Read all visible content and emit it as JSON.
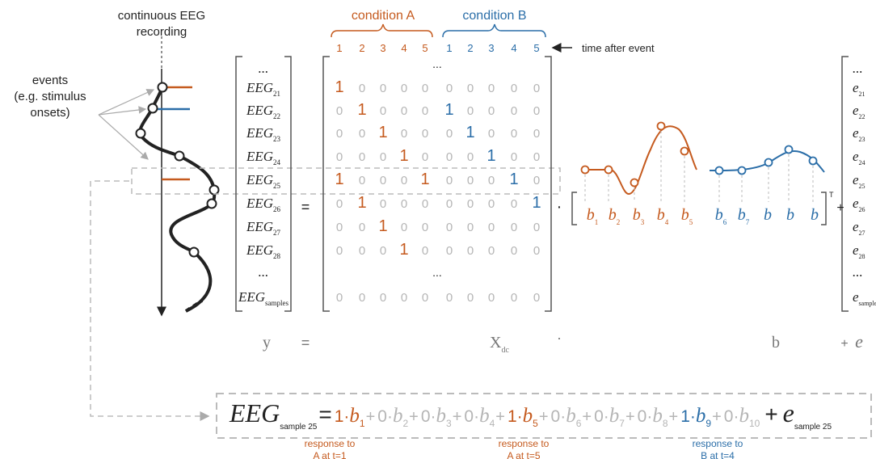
{
  "recording_title": [
    "continuous EEG",
    "recording"
  ],
  "events_label": [
    "events",
    "(e.g. stimulus",
    "onsets)"
  ],
  "conditions": [
    {
      "name": "condition A",
      "lags": [
        1,
        2,
        3,
        4,
        5
      ]
    },
    {
      "name": "condition B",
      "lags": [
        1,
        2,
        3,
        4,
        5
      ]
    }
  ],
  "time_label": "time after event",
  "y_vector": [
    {
      "main": "..."
    },
    {
      "main": "EEG",
      "sub": "21"
    },
    {
      "main": "EEG",
      "sub": "22"
    },
    {
      "main": "EEG",
      "sub": "23"
    },
    {
      "main": "EEG",
      "sub": "24"
    },
    {
      "main": "EEG",
      "sub": "25"
    },
    {
      "main": "EEG",
      "sub": "26"
    },
    {
      "main": "EEG",
      "sub": "27"
    },
    {
      "main": "EEG",
      "sub": "28"
    },
    {
      "main": "..."
    },
    {
      "main": "EEG",
      "sub": "samples"
    }
  ],
  "design_matrix": {
    "top": "...",
    "rows": [
      [
        1,
        0,
        0,
        0,
        0,
        0,
        0,
        0,
        0,
        0
      ],
      [
        0,
        1,
        0,
        0,
        0,
        1,
        0,
        0,
        0,
        0
      ],
      [
        0,
        0,
        1,
        0,
        0,
        0,
        1,
        0,
        0,
        0
      ],
      [
        0,
        0,
        0,
        1,
        0,
        0,
        0,
        1,
        0,
        0
      ],
      [
        1,
        0,
        0,
        0,
        1,
        0,
        0,
        0,
        1,
        0
      ],
      [
        0,
        1,
        0,
        0,
        0,
        0,
        0,
        0,
        0,
        1
      ],
      [
        0,
        0,
        1,
        0,
        0,
        0,
        0,
        0,
        0,
        0
      ],
      [
        0,
        0,
        0,
        1,
        0,
        0,
        0,
        0,
        0,
        0
      ]
    ],
    "gap": "...",
    "last_row": [
      0,
      0,
      0,
      0,
      0,
      0,
      0,
      0,
      0,
      0
    ]
  },
  "b_vector": [
    {
      "main": "b",
      "sub": "1"
    },
    {
      "main": "b",
      "sub": "2"
    },
    {
      "main": "b",
      "sub": "3"
    },
    {
      "main": "b",
      "sub": "4"
    },
    {
      "main": "b",
      "sub": "5"
    },
    {
      "main": "b",
      "sub": "6"
    },
    {
      "main": "b",
      "sub": "7"
    },
    {
      "main": "b"
    },
    {
      "main": "b"
    },
    {
      "main": "b"
    }
  ],
  "transpose": "T",
  "e_vector": [
    {
      "main": "..."
    },
    {
      "main": "e",
      "sub": "21"
    },
    {
      "main": "e",
      "sub": "22"
    },
    {
      "main": "e",
      "sub": "23"
    },
    {
      "main": "e",
      "sub": "24"
    },
    {
      "main": "e",
      "sub": "25"
    },
    {
      "main": "e",
      "sub": "26"
    },
    {
      "main": "e",
      "sub": "27"
    },
    {
      "main": "e",
      "sub": "28"
    },
    {
      "main": "..."
    },
    {
      "main": "e",
      "sub": "samples"
    }
  ],
  "operators": {
    "equals": "=",
    "dot": "·",
    "plus": "+"
  },
  "formula_labels": {
    "y": "y",
    "X": {
      "main": "X",
      "sub": "dc"
    },
    "b": "b",
    "e": "e"
  },
  "equation": {
    "lhs": {
      "main": "EEG",
      "sub": "sample 25"
    },
    "terms": [
      {
        "coef": 1,
        "var": "b",
        "sub": "1"
      },
      {
        "coef": 0,
        "var": "b",
        "sub": "2"
      },
      {
        "coef": 0,
        "var": "b",
        "sub": "3"
      },
      {
        "coef": 0,
        "var": "b",
        "sub": "4"
      },
      {
        "coef": 1,
        "var": "b",
        "sub": "5"
      },
      {
        "coef": 0,
        "var": "b",
        "sub": "6"
      },
      {
        "coef": 0,
        "var": "b",
        "sub": "7"
      },
      {
        "coef": 0,
        "var": "b",
        "sub": "8"
      },
      {
        "coef": 1,
        "var": "b",
        "sub": "9"
      },
      {
        "coef": 0,
        "var": "b",
        "sub": "10"
      }
    ],
    "error": {
      "main": "e",
      "sub": "sample 25"
    }
  },
  "annotations": [
    [
      "response to",
      "A at t=1"
    ],
    [
      "response to",
      "A at t=5"
    ],
    [
      "response to",
      "B at t=4"
    ]
  ]
}
